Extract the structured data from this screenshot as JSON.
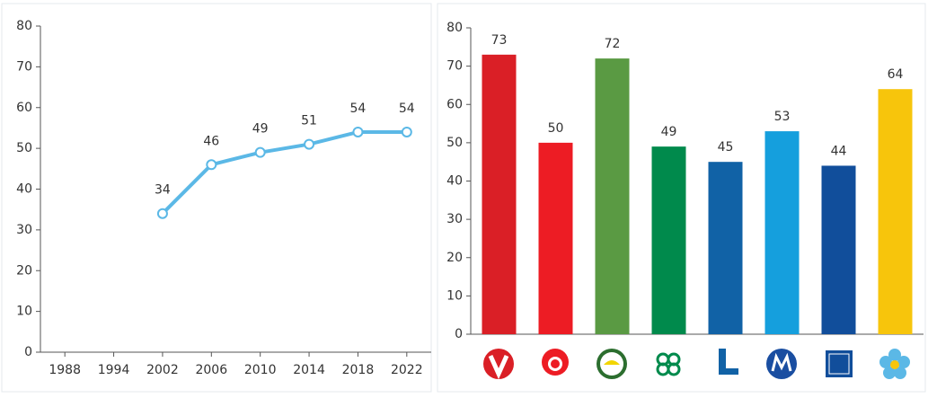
{
  "chart_data": [
    {
      "type": "line",
      "categories": [
        "1988",
        "1994",
        "2002",
        "2006",
        "2010",
        "2014",
        "2018",
        "2022"
      ],
      "values": [
        null,
        null,
        34,
        46,
        49,
        51,
        54,
        54
      ],
      "color": "#5bb8e6",
      "ylim": [
        0,
        80
      ],
      "yticks": [
        0,
        10,
        20,
        30,
        40,
        50,
        60,
        70,
        80
      ],
      "grid": false
    },
    {
      "type": "bar",
      "categories": [
        null,
        null,
        null,
        null,
        null,
        null,
        null,
        null
      ],
      "values": [
        73,
        50,
        72,
        49,
        45,
        53,
        44,
        64
      ],
      "colors": [
        "#da1f26",
        "#ed1c24",
        "#5a9a43",
        "#008a4c",
        "#1162a6",
        "#159fdd",
        "#114e9b",
        "#f7c50c"
      ],
      "ylim": [
        0,
        80
      ],
      "yticks": [
        0,
        10,
        20,
        30,
        40,
        50,
        60,
        70,
        80
      ],
      "grid": false
    }
  ]
}
